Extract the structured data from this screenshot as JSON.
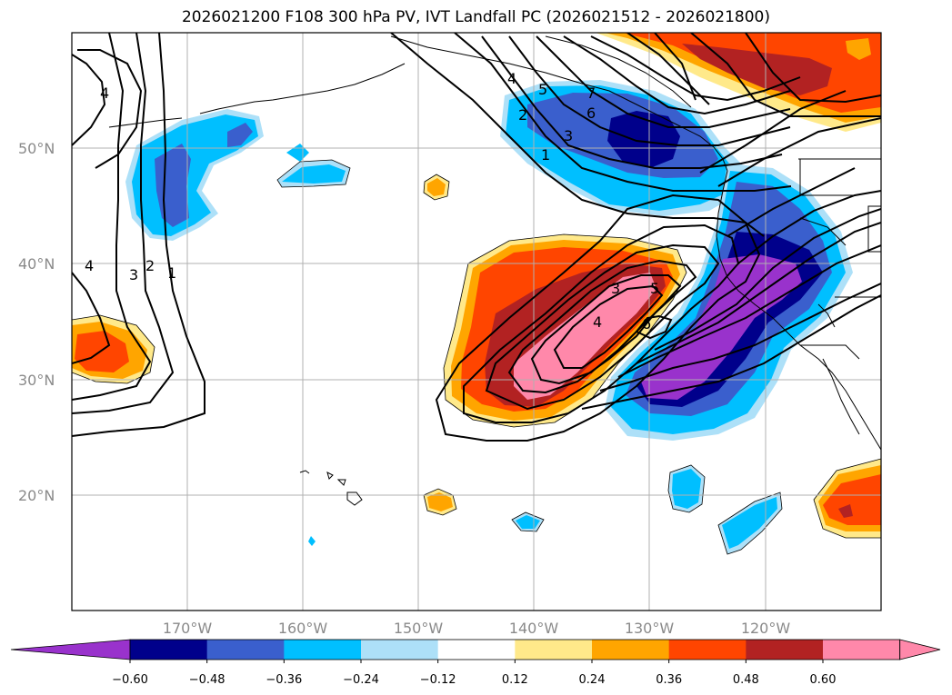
{
  "title": "2026021200 F108 300 hPa PV, IVT Landfall PC (2026021512 - 2026021800)",
  "lat_labels": [
    "50°N",
    "40°N",
    "30°N",
    "20°N"
  ],
  "lon_labels": [
    "170°W",
    "160°W",
    "150°W",
    "140°W",
    "130°W",
    "120°W"
  ],
  "colorbar": {
    "ticks": [
      "−0.60",
      "−0.48",
      "−0.36",
      "−0.24",
      "−0.12",
      "0.12",
      "0.24",
      "0.36",
      "0.48",
      "0.60"
    ],
    "colors": [
      "#9932CC",
      "#00008B",
      "#3A5FCD",
      "#00BFFF",
      "#ADE0F8",
      "#FFFFFF",
      "#FFE98A",
      "#FFA500",
      "#FF4500",
      "#B22222",
      "#FF88AA"
    ]
  },
  "contour_labels": {
    "west": [
      "4",
      "4",
      "3",
      "2",
      "1"
    ],
    "north": [
      "4",
      "5",
      "7",
      "6",
      "2",
      "3",
      "1"
    ],
    "center": [
      "3",
      "5",
      "4",
      "6"
    ]
  }
}
